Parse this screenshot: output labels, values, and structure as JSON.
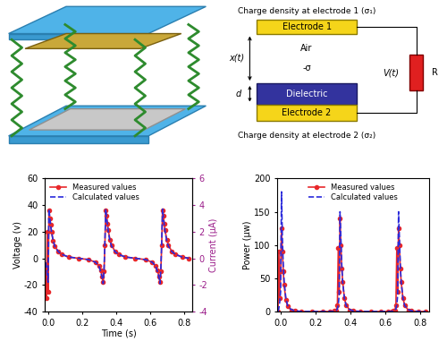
{
  "schematic": {
    "electrode_1_caption": "Charge density at electrode 1 (σ₁)",
    "electrode_1": "Electrode 1",
    "gap_medium": "Air",
    "gap": "x(t)",
    "surface_charge": "-σ",
    "thickness": "d",
    "dielectric": "Dielectric",
    "electrode_2": "Electrode 2",
    "electrode_2_caption": "Charge density at electrode 2 (σ₂)",
    "voltage": "V(t)",
    "load": "R"
  },
  "chart_data": [
    {
      "type": "line",
      "xlabel": "Time (s)",
      "ylabel": "Voltage (v)",
      "y2label": "Current (μA)",
      "x": [
        -0.015,
        -0.01,
        -0.005,
        0.0,
        0.005,
        0.01,
        0.015,
        0.02,
        0.03,
        0.04,
        0.06,
        0.08,
        0.12,
        0.18,
        0.24,
        0.28,
        0.3,
        0.31,
        0.32,
        0.325,
        0.33,
        0.335,
        0.34,
        0.345,
        0.35,
        0.355,
        0.365,
        0.375,
        0.395,
        0.415,
        0.455,
        0.515,
        0.575,
        0.615,
        0.635,
        0.645,
        0.655,
        0.66,
        0.665,
        0.67,
        0.675,
        0.68,
        0.685,
        0.69,
        0.7,
        0.71,
        0.73,
        0.75,
        0.79,
        0.83
      ],
      "series": [
        {
          "name": "Measured values",
          "color": "#e8282b",
          "marker": "o",
          "line_style": "solid",
          "values": [
            -5,
            -30,
            20,
            -25,
            36,
            30,
            25,
            20,
            13,
            9,
            5,
            3,
            1,
            0,
            -1,
            -3,
            -6,
            -9,
            -14,
            -18,
            -10,
            10,
            36,
            32,
            26,
            21,
            14,
            10,
            5,
            3,
            1,
            0,
            -1,
            -3,
            -6,
            -9,
            -14,
            -18,
            -10,
            10,
            36,
            32,
            26,
            21,
            14,
            10,
            5,
            3,
            1,
            0
          ]
        },
        {
          "name": "Calculated values",
          "color": "#2a2adb",
          "line_style": "dashed",
          "values": [
            -3,
            -6,
            -12,
            -18,
            37,
            31,
            25,
            20,
            13,
            9,
            5,
            3,
            1,
            0,
            -1,
            -3,
            -6,
            -10,
            -15,
            -19,
            -8,
            12,
            37,
            31,
            25,
            20,
            13,
            9,
            5,
            3,
            1,
            0,
            -1,
            -3,
            -6,
            -10,
            -15,
            -19,
            -8,
            12,
            37,
            31,
            25,
            20,
            13,
            9,
            5,
            3,
            1,
            0
          ]
        }
      ],
      "xlim": [
        -0.02,
        0.85
      ],
      "xticks": [
        0.0,
        0.2,
        0.4,
        0.6,
        0.8
      ],
      "ylim": [
        -40,
        60
      ],
      "yticks": [
        -40,
        -20,
        0,
        20,
        40,
        60
      ],
      "y2lim": [
        -4,
        6
      ],
      "y2ticks": [
        -4,
        -2,
        0,
        2,
        4,
        6
      ],
      "legend": "upper left"
    },
    {
      "type": "line",
      "ylabel": "Power (μw)",
      "x": [
        -0.015,
        -0.01,
        -0.005,
        0.0,
        0.005,
        0.01,
        0.015,
        0.02,
        0.03,
        0.04,
        0.06,
        0.08,
        0.12,
        0.18,
        0.24,
        0.28,
        0.3,
        0.31,
        0.32,
        0.325,
        0.33,
        0.335,
        0.34,
        0.345,
        0.35,
        0.355,
        0.365,
        0.375,
        0.395,
        0.415,
        0.455,
        0.515,
        0.575,
        0.615,
        0.635,
        0.645,
        0.655,
        0.66,
        0.665,
        0.67,
        0.675,
        0.68,
        0.685,
        0.69,
        0.7,
        0.71,
        0.73,
        0.75,
        0.79,
        0.83
      ],
      "series": [
        {
          "name": "Measured values",
          "color": "#e8282b",
          "marker": "o",
          "line_style": "solid",
          "values": [
            0,
            90,
            20,
            60,
            125,
            90,
            60,
            40,
            17,
            8,
            2,
            1,
            0,
            0,
            0,
            0,
            0,
            1,
            2,
            10,
            95,
            30,
            140,
            100,
            65,
            45,
            20,
            10,
            2,
            1,
            0,
            0,
            0,
            0,
            0,
            1,
            2,
            10,
            95,
            30,
            125,
            100,
            65,
            45,
            20,
            10,
            2,
            1,
            0,
            0
          ]
        },
        {
          "name": "Calculated values",
          "color": "#2a2adb",
          "line_style": "dashed",
          "values": [
            0,
            5,
            15,
            30,
            180,
            110,
            70,
            45,
            20,
            9,
            3,
            1,
            0,
            0,
            0,
            0,
            0,
            1,
            2,
            4,
            10,
            25,
            150,
            110,
            70,
            45,
            20,
            9,
            3,
            1,
            0,
            0,
            0,
            0,
            0,
            1,
            2,
            4,
            10,
            25,
            150,
            110,
            70,
            45,
            20,
            9,
            3,
            1,
            0,
            0
          ]
        }
      ],
      "xlim": [
        -0.02,
        0.85
      ],
      "xticks": [
        0.0,
        0.2,
        0.4,
        0.6,
        0.8
      ],
      "ylim": [
        0,
        200
      ],
      "yticks": [
        0,
        50,
        100,
        150,
        200
      ],
      "legend": "upper center"
    }
  ]
}
